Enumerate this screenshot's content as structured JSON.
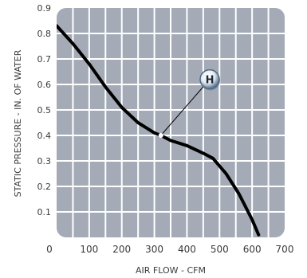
{
  "chart_data": {
    "type": "line",
    "title": "",
    "xlabel": "AIR FLOW - CFM",
    "ylabel": "STATIC PRESSURE - IN. OF WATER",
    "xlim": [
      0,
      700
    ],
    "ylim": [
      0,
      0.9
    ],
    "x_ticks": [
      "0",
      "100",
      "200",
      "300",
      "400",
      "500",
      "600",
      "700"
    ],
    "y_ticks": [
      "0.1",
      "0.2",
      "0.3",
      "0.4",
      "0.5",
      "0.6",
      "0.7",
      "0.8",
      "0.9"
    ],
    "grid": true,
    "series": [
      {
        "x": [
          0,
          50,
          100,
          150,
          200,
          250,
          300,
          320,
          350,
          400,
          450,
          480,
          520,
          560,
          600,
          620
        ],
        "y": [
          0.83,
          0.76,
          0.68,
          0.59,
          0.51,
          0.45,
          0.41,
          0.4,
          0.38,
          0.36,
          0.33,
          0.31,
          0.25,
          0.17,
          0.07,
          0.01
        ]
      }
    ],
    "annotations": [
      {
        "label": "H",
        "x": 320,
        "y": 0.4,
        "callout_x": 470,
        "callout_y": 0.62
      }
    ],
    "colors": {
      "plot_background": "#a4abb7",
      "grid": "#ffffff",
      "line": "#000000",
      "marker_fill": "#4e6a86"
    }
  }
}
